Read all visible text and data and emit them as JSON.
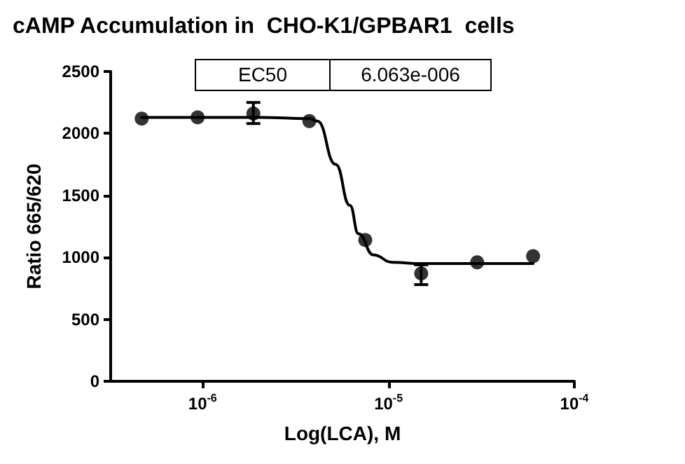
{
  "chart_data": {
    "type": "scatter",
    "title": "cAMP Accumulation in  CHO-K1/GPBAR1  cells",
    "xlabel": "Log(LCA), M",
    "ylabel": "Ratio 665/620",
    "annotations": [
      "EC50",
      "6.063e-006"
    ],
    "log": "x",
    "grid": false,
    "marker": "circle",
    "xlim": [
      3.2e-07,
      0.0001
    ],
    "xticks": [
      {
        "value": 1e-06,
        "label": "10$^{-6}$"
      },
      {
        "value": 1e-05,
        "label": "10$^{-5}$"
      },
      {
        "value": 0.0001,
        "label": "10$^{-4}$"
      }
    ],
    "ylim": [
      0,
      2500
    ],
    "yticks": [
      0,
      500,
      1000,
      1500,
      2000,
      2500
    ],
    "x": [
      4.7e-07,
      9.4e-07,
      1.875e-06,
      3.75e-06,
      7.5e-06,
      1.5e-05,
      3e-05,
      6e-05
    ],
    "series": [
      {
        "color": "#000000",
        "values": [
          2120,
          2130,
          2160,
          2100,
          1140,
          870,
          960,
          1010
        ],
        "errors": [
          null,
          null,
          [
            2080,
            2250
          ],
          null,
          null,
          [
            780,
            940
          ],
          null,
          null
        ]
      },
      {
        "type": "line",
        "color": "#000000",
        "marker": "none",
        "line_style": "solid",
        "x": [
          4.7e-07,
          1e-06,
          2e-06,
          3.75e-06,
          4.14e-06,
          5.2e-06,
          6.2e-06,
          6.9e-06,
          8.3e-06,
          1.05e-05,
          1.5e-05,
          3e-05,
          6e-05
        ],
        "values": [
          2130,
          2130,
          2130,
          2120,
          2100,
          1750,
          1420,
          1190,
          1020,
          960,
          950,
          950,
          950
        ]
      }
    ]
  }
}
